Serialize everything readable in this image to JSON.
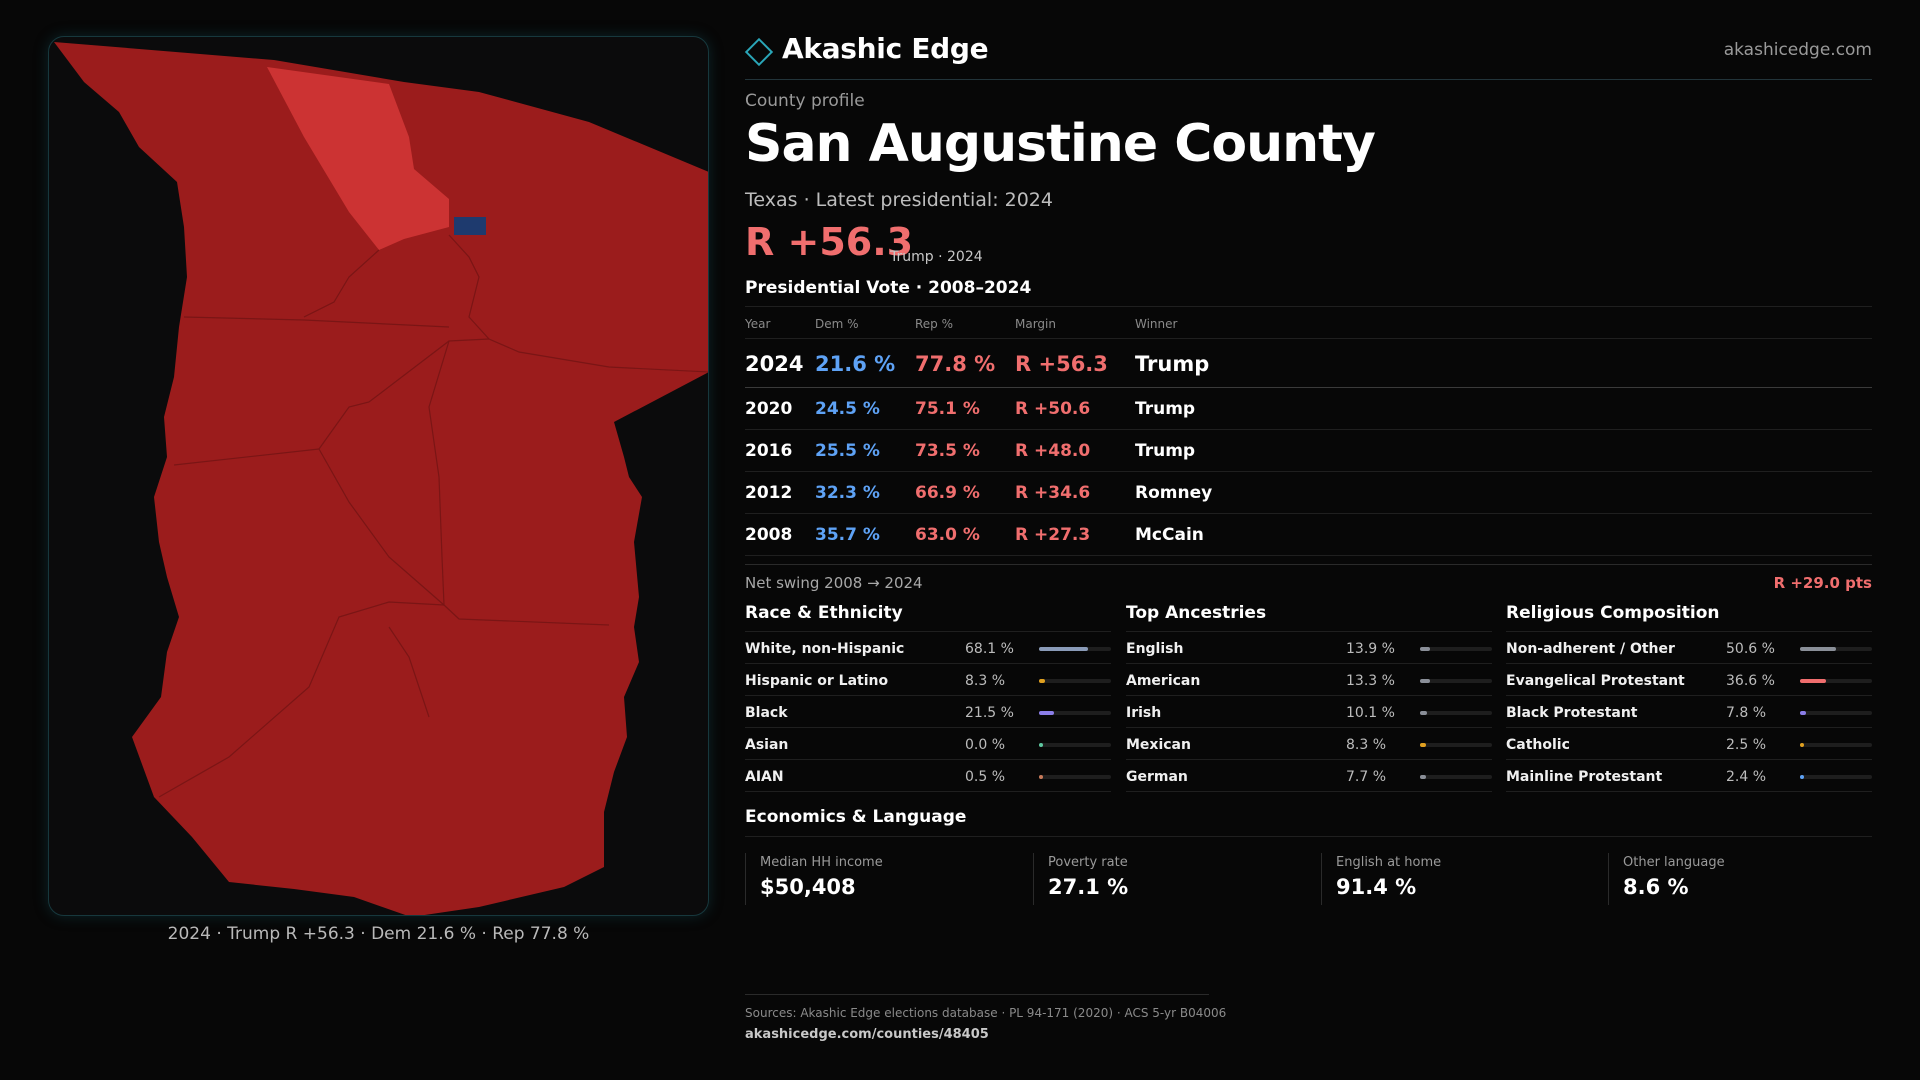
{
  "brand": {
    "name": "Akashic Edge",
    "site": "akashicedge.com",
    "accent_color": "#2aa6b8"
  },
  "profile": {
    "eyebrow": "County profile",
    "county": "San Augustine County",
    "state": "Texas",
    "latest_label": "Latest presidential: 2024",
    "headline_margin": "R +56.3",
    "headline_meta": "Trump · 2024"
  },
  "map": {
    "caption": "2024 · Trump  R +56.3 · Dem 21.6 % · Rep 77.8 %",
    "colors": {
      "rep_dark": "#9b1c1c",
      "rep_light": "#cc3333",
      "dem_marker": "#1e3a6e"
    }
  },
  "vote_table": {
    "title": "Presidential Vote · 2008–2024",
    "headers": {
      "year": "Year",
      "dem": "Dem %",
      "rep": "Rep %",
      "margin": "Margin",
      "winner": "Winner"
    },
    "rows": [
      {
        "year": "2024",
        "dem": "21.6 %",
        "rep": "77.8 %",
        "margin": "R +56.3",
        "winner": "Trump"
      },
      {
        "year": "2020",
        "dem": "24.5 %",
        "rep": "75.1 %",
        "margin": "R +50.6",
        "winner": "Trump"
      },
      {
        "year": "2016",
        "dem": "25.5 %",
        "rep": "73.5 %",
        "margin": "R +48.0",
        "winner": "Trump"
      },
      {
        "year": "2012",
        "dem": "32.3 %",
        "rep": "66.9 %",
        "margin": "R +34.6",
        "winner": "Romney"
      },
      {
        "year": "2008",
        "dem": "35.7 %",
        "rep": "63.0 %",
        "margin": "R +27.3",
        "winner": "McCain"
      }
    ],
    "swing_label": "Net swing 2008 → 2024",
    "swing_value": "R +29.0 pts"
  },
  "race": {
    "title": "Race & Ethnicity",
    "items": [
      {
        "label": "White, non-Hispanic",
        "value": "68.1 %",
        "pct": 68.1,
        "color": "#8a9bb8"
      },
      {
        "label": "Hispanic or Latino",
        "value": "8.3 %",
        "pct": 8.3,
        "color": "#e0a020"
      },
      {
        "label": "Black",
        "value": "21.5 %",
        "pct": 21.5,
        "color": "#8b7ee8"
      },
      {
        "label": "Asian",
        "value": "0.0 %",
        "pct": 0.0,
        "color": "#5ec8a0"
      },
      {
        "label": "AIAN",
        "value": "0.5 %",
        "pct": 0.5,
        "color": "#c87a5a"
      }
    ]
  },
  "ancestry": {
    "title": "Top Ancestries",
    "items": [
      {
        "label": "English",
        "value": "13.9 %",
        "pct": 13.9,
        "color": "#8a8f98"
      },
      {
        "label": "American",
        "value": "13.3 %",
        "pct": 13.3,
        "color": "#8a8f98"
      },
      {
        "label": "Irish",
        "value": "10.1 %",
        "pct": 10.1,
        "color": "#8a8f98"
      },
      {
        "label": "Mexican",
        "value": "8.3 %",
        "pct": 8.3,
        "color": "#e0a020"
      },
      {
        "label": "German",
        "value": "7.7 %",
        "pct": 7.7,
        "color": "#8a8f98"
      }
    ]
  },
  "religion": {
    "title": "Religious Composition",
    "items": [
      {
        "label": "Non-adherent / Other",
        "value": "50.6 %",
        "pct": 50.6,
        "color": "#8a8f98"
      },
      {
        "label": "Evangelical Protestant",
        "value": "36.6 %",
        "pct": 36.6,
        "color": "#f06e6e"
      },
      {
        "label": "Black Protestant",
        "value": "7.8 %",
        "pct": 7.8,
        "color": "#8b7ee8"
      },
      {
        "label": "Catholic",
        "value": "2.5 %",
        "pct": 2.5,
        "color": "#e0a020"
      },
      {
        "label": "Mainline Protestant",
        "value": "2.4 %",
        "pct": 2.4,
        "color": "#5ea2f5"
      }
    ]
  },
  "economics": {
    "title": "Economics & Language",
    "cards": [
      {
        "label": "Median HH income",
        "value": "$50,408"
      },
      {
        "label": "Poverty rate",
        "value": "27.1 %"
      },
      {
        "label": "English at home",
        "value": "91.4 %"
      },
      {
        "label": "Other language",
        "value": "8.6 %"
      }
    ]
  },
  "footer": {
    "sources": "Sources: Akashic Edge elections database · PL 94-171 (2020) · ACS 5-yr B04006",
    "url": "akashicedge.com/counties/48405"
  }
}
